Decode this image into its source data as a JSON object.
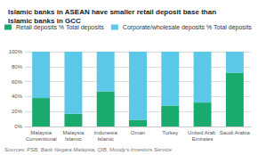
{
  "chart_data": {
    "type": "bar",
    "title": "Islamic banks in ASEAN have smaller retail deposit base than Islamic banks in GCC",
    "categories": [
      "Malaysia\nConventional",
      "Malaysia\nIslamic",
      "Indonesia\nIslamic",
      "Oman",
      "Turkey",
      "United Arab Emirates",
      "Saudi Arabia"
    ],
    "series": [
      {
        "name": "Retail deposits % Total deposits",
        "color": "#1aaa6e",
        "values": [
          38,
          17,
          47,
          9,
          28,
          32,
          72
        ]
      },
      {
        "name": "Corporate/wholesale deposits % Total deposits",
        "color": "#5cc8e8",
        "values": [
          62,
          83,
          53,
          91,
          72,
          68,
          28
        ]
      }
    ],
    "stacked": true,
    "ylim": [
      0,
      100
    ],
    "yticks": [
      {
        "value": 0,
        "label": "0%"
      },
      {
        "value": 20,
        "label": "20%"
      },
      {
        "value": 40,
        "label": "40%"
      },
      {
        "value": 60,
        "label": "60%"
      },
      {
        "value": 80,
        "label": "80%"
      },
      {
        "value": 100,
        "label": "100%"
      }
    ],
    "grid": true,
    "legend": "upper left",
    "annotations": [
      "Sources: PSB, Bank Negara Malaysia, QIB, Moody's Investors Service"
    ]
  }
}
